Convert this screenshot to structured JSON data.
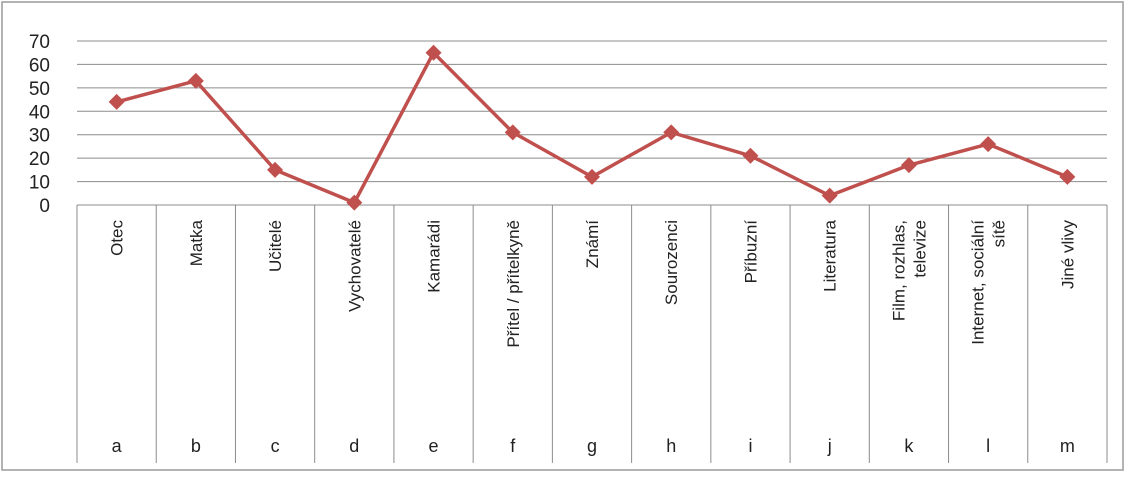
{
  "chart_data": {
    "type": "line",
    "title": "",
    "xlabel": "",
    "ylabel": "",
    "ylim": [
      0,
      70
    ],
    "yticks": [
      0,
      10,
      20,
      30,
      40,
      50,
      60,
      70
    ],
    "grid": true,
    "legend": "none",
    "series_color": "#C0504D",
    "categories": [
      {
        "label_lines": [
          "Otec"
        ],
        "letter": "a"
      },
      {
        "label_lines": [
          "Matka"
        ],
        "letter": "b"
      },
      {
        "label_lines": [
          "Učitelé"
        ],
        "letter": "c"
      },
      {
        "label_lines": [
          "Vychovatelé"
        ],
        "letter": "d"
      },
      {
        "label_lines": [
          "Kamarádi"
        ],
        "letter": "e"
      },
      {
        "label_lines": [
          "Přítel / přítelkyně"
        ],
        "letter": "f"
      },
      {
        "label_lines": [
          "Známí"
        ],
        "letter": "g"
      },
      {
        "label_lines": [
          "Sourozenci"
        ],
        "letter": "h"
      },
      {
        "label_lines": [
          "Příbuzní"
        ],
        "letter": "i"
      },
      {
        "label_lines": [
          "Literatura"
        ],
        "letter": "j"
      },
      {
        "label_lines": [
          "Film, rozhlas,",
          "televize"
        ],
        "letter": "k"
      },
      {
        "label_lines": [
          "Internet, sociální",
          "sítě"
        ],
        "letter": "l"
      },
      {
        "label_lines": [
          "Jiné vlivy"
        ],
        "letter": "m"
      }
    ],
    "series": [
      {
        "values": [
          44,
          53,
          15,
          1,
          65,
          31,
          12,
          31,
          21,
          4,
          17,
          26,
          12
        ]
      }
    ]
  }
}
